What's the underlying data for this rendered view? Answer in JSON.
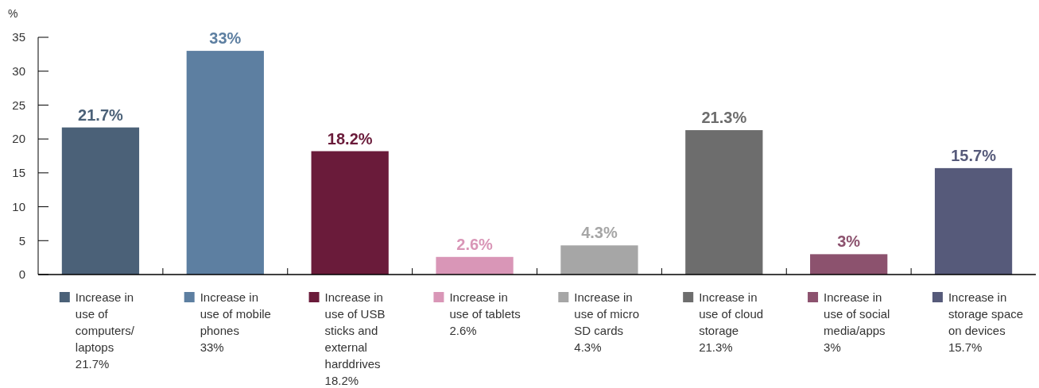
{
  "chart_data": {
    "type": "bar",
    "ylabel": "%",
    "categories": [
      "Increase in use of computers/ laptops",
      "Increase in use of mobile phones",
      "Increase in use of USB sticks and external harddrives",
      "Increase in use of tablets",
      "Increase in use of micro SD cards",
      "Increase in use of cloud storage",
      "Increase in use of social media/apps",
      "Increase in storage space on devices"
    ],
    "values": [
      21.7,
      33,
      18.2,
      2.6,
      4.3,
      21.3,
      3,
      15.7
    ],
    "value_labels": [
      "21.7%",
      "33%",
      "18.2%",
      "2.6%",
      "4.3%",
      "21.3%",
      "3%",
      "15.7%"
    ],
    "colors": [
      "#4b6178",
      "#5d7fa1",
      "#6a1b3a",
      "#d996b7",
      "#a6a6a6",
      "#6d6d6d",
      "#8c526e",
      "#565a7a"
    ],
    "ylim": [
      0,
      35
    ],
    "yticks": [
      0,
      5,
      10,
      15,
      20,
      25,
      30,
      35
    ]
  }
}
